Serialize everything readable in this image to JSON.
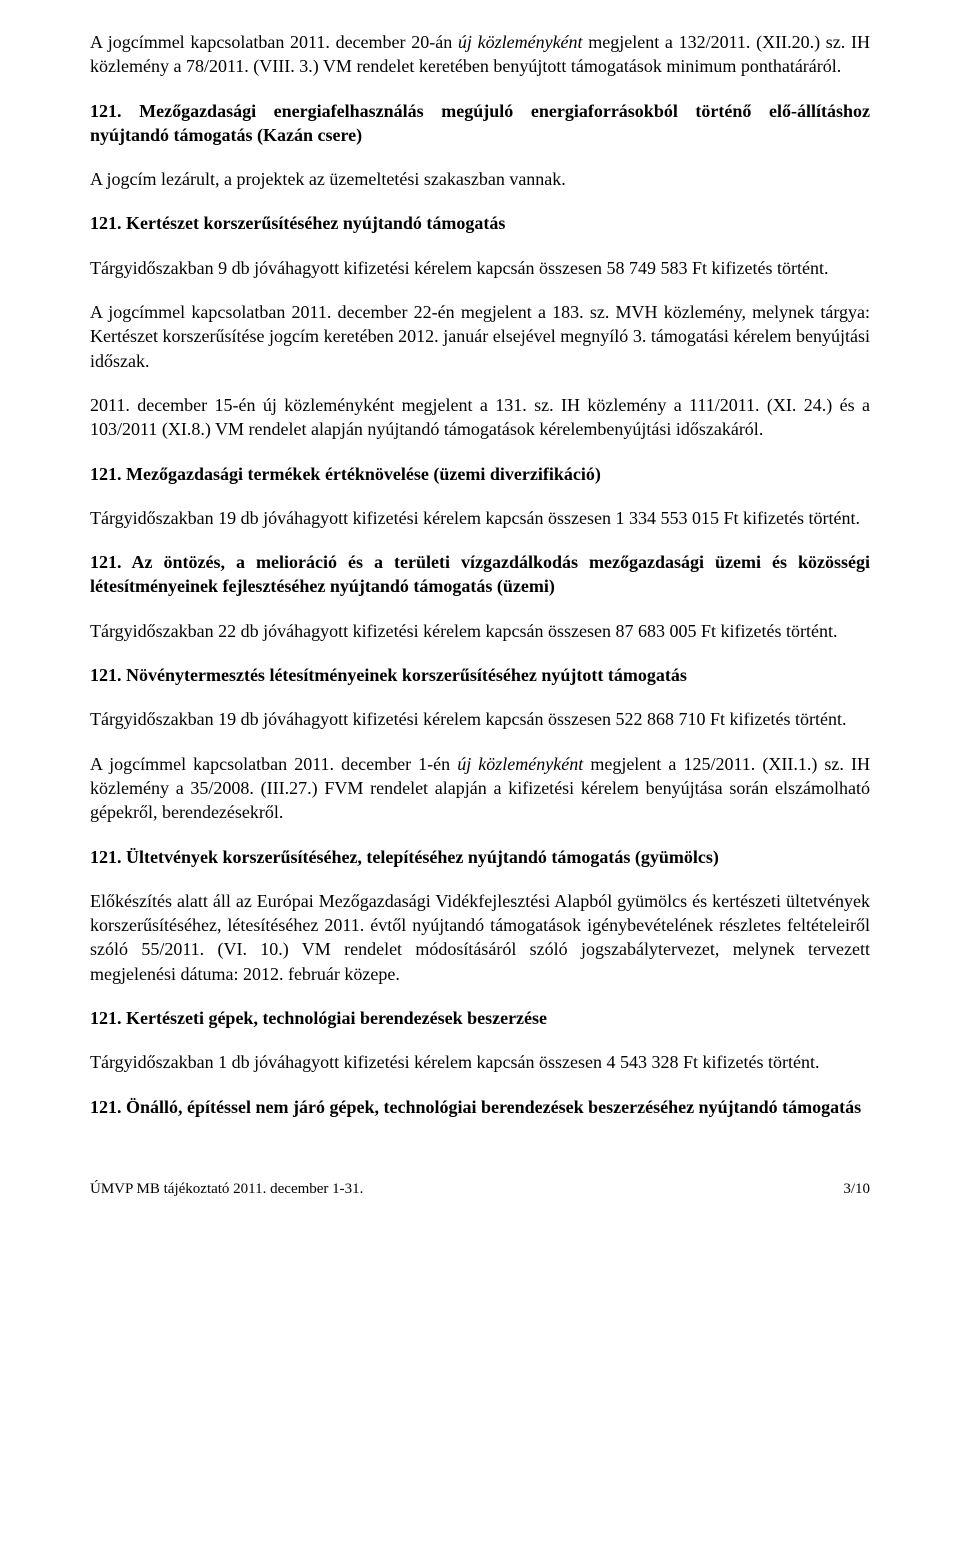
{
  "p1": {
    "seg1": "A jogcímmel kapcsolatban 2011. december 20-án ",
    "seg2": "új közleményként",
    "seg3": " megjelent a 132/2011. (XII.20.) sz. IH közlemény a 78/2011. (VIII. 3.) VM rendelet keretében benyújtott támogatások minimum ponthatáráról."
  },
  "h1": "121. Mezőgazdasági energiafelhasználás megújuló energiaforrásokból történő elő-állításhoz nyújtandó támogatás (Kazán csere)",
  "p2": "A jogcím lezárult, a projektek az üzemeltetési szakaszban vannak.",
  "h2": "121. Kertészet korszerűsítéséhez nyújtandó támogatás",
  "p3": "Tárgyidőszakban 9 db jóváhagyott kifizetési kérelem kapcsán összesen 58 749 583 Ft kifizetés történt.",
  "p4": "A jogcímmel kapcsolatban 2011. december 22-én megjelent a 183. sz. MVH közlemény, melynek tárgya: Kertészet korszerűsítése jogcím keretében 2012. január elsejével megnyíló 3. támogatási kérelem benyújtási időszak.",
  "p5": "2011. december 15-én új közleményként megjelent a 131. sz. IH közlemény a 111/2011. (XI. 24.) és a 103/2011 (XI.8.) VM rendelet alapján nyújtandó támogatások kérelembenyújtási időszakáról.",
  "h3": "121. Mezőgazdasági termékek értéknövelése (üzemi diverzifikáció)",
  "p6": "Tárgyidőszakban 19 db jóváhagyott kifizetési kérelem kapcsán összesen 1 334 553 015 Ft kifizetés történt.",
  "h4": "121. Az öntözés, a melioráció és a területi vízgazdálkodás mezőgazdasági üzemi és közösségi létesítményeinek fejlesztéséhez nyújtandó támogatás (üzemi)",
  "p7": "Tárgyidőszakban 22 db jóváhagyott kifizetési kérelem kapcsán összesen 87 683 005 Ft kifizetés történt.",
  "h5": "121. Növénytermesztés létesítményeinek korszerűsítéséhez nyújtott támogatás",
  "p8": "Tárgyidőszakban 19 db jóváhagyott kifizetési kérelem kapcsán összesen 522 868 710 Ft kifizetés történt.",
  "p9": {
    "seg1": "A jogcímmel kapcsolatban 2011. december 1-én ",
    "seg2": "új közleményként",
    "seg3": " megjelent a 125/2011. (XII.1.) sz. IH közlemény a 35/2008. (III.27.) FVM rendelet alapján a kifizetési kérelem benyújtása során elszámolható gépekről, berendezésekről."
  },
  "h6": "121. Ültetvények korszerűsítéséhez, telepítéséhez nyújtandó támogatás (gyümölcs)",
  "p10": "Előkészítés alatt áll az Európai Mezőgazdasági Vidékfejlesztési Alapból gyümölcs és kertészeti ültetvények korszerűsítéséhez, létesítéséhez 2011. évtől nyújtandó támogatások igénybevételének részletes feltételeiről szóló 55/2011. (VI. 10.) VM rendelet módosításáról szóló jogszabálytervezet, melynek tervezett megjelenési dátuma: 2012. február közepe.",
  "h7": "121. Kertészeti gépek, technológiai berendezések beszerzése",
  "p11": "Tárgyidőszakban 1 db jóváhagyott kifizetési kérelem kapcsán összesen 4 543 328 Ft kifizetés történt.",
  "h8": "121. Önálló, építéssel nem járó gépek, technológiai berendezések beszerzéséhez nyújtandó támogatás",
  "footer": {
    "left": "ÚMVP MB tájékoztató 2011. december 1-31.",
    "right": "3/10"
  }
}
